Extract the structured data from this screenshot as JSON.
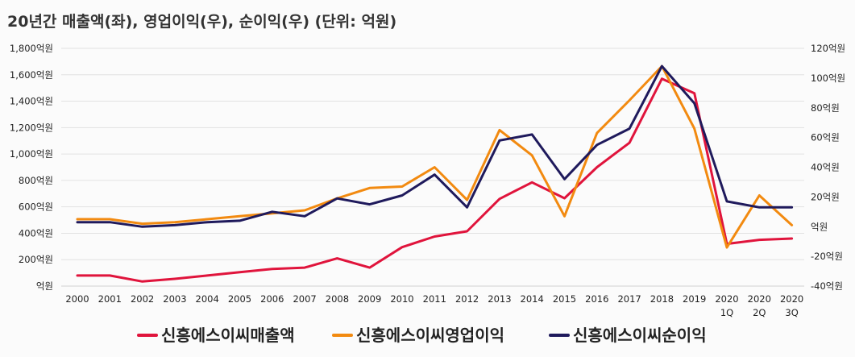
{
  "chart_data": {
    "type": "line",
    "title": "20년간 매출액(좌), 영업이익(우), 순이익(우) (단위: 억원)",
    "categories": [
      [
        "2000"
      ],
      [
        "2001"
      ],
      [
        "2002"
      ],
      [
        "2003"
      ],
      [
        "2004"
      ],
      [
        "2005"
      ],
      [
        "2006"
      ],
      [
        "2007"
      ],
      [
        "2008"
      ],
      [
        "2009"
      ],
      [
        "2010"
      ],
      [
        "2011"
      ],
      [
        "2012"
      ],
      [
        "2013"
      ],
      [
        "2014"
      ],
      [
        "2015"
      ],
      [
        "2016"
      ],
      [
        "2017"
      ],
      [
        "2018"
      ],
      [
        "2019"
      ],
      [
        "2020",
        "1Q"
      ],
      [
        "2020",
        "2Q"
      ],
      [
        "2020",
        "3Q"
      ]
    ],
    "left_axis": {
      "ylim": [
        0,
        1800
      ],
      "ticks": [
        "억원",
        "200억원",
        "400억원",
        "600억원",
        "800억원",
        "1,000억원",
        "1,200억원",
        "1,400억원",
        "1,600억원",
        "1,800억원"
      ]
    },
    "right_axis": {
      "ylim": [
        -40,
        120
      ],
      "ticks": [
        "-40억원",
        "-20억원",
        "억원",
        "20억원",
        "40억원",
        "60억원",
        "80억원",
        "100억원",
        "120억원"
      ]
    },
    "series": [
      {
        "name": "신흥에스이씨매출액",
        "axis": "left",
        "color": "#e0143c",
        "values": [
          80,
          80,
          35,
          55,
          80,
          105,
          130,
          140,
          210,
          140,
          295,
          375,
          415,
          660,
          785,
          665,
          900,
          1085,
          1570,
          1460,
          320,
          350,
          360
        ]
      },
      {
        "name": "신흥에스이씨영업이익",
        "axis": "right",
        "color": "#f28a10",
        "values": [
          5,
          5,
          2,
          3,
          5,
          7,
          9,
          11,
          19,
          26,
          27,
          40,
          18,
          65,
          48,
          7,
          63,
          85,
          108,
          66,
          -14,
          21,
          1
        ]
      },
      {
        "name": "신흥에스이씨순이익",
        "axis": "right",
        "color": "#1f1a5c",
        "values": [
          3,
          3,
          0,
          1,
          3,
          4,
          10,
          7,
          19,
          15,
          21,
          35,
          13,
          58,
          62,
          32,
          55,
          66,
          108,
          83,
          17,
          13,
          13
        ]
      }
    ],
    "grid": true,
    "legend_position": "bottom"
  }
}
